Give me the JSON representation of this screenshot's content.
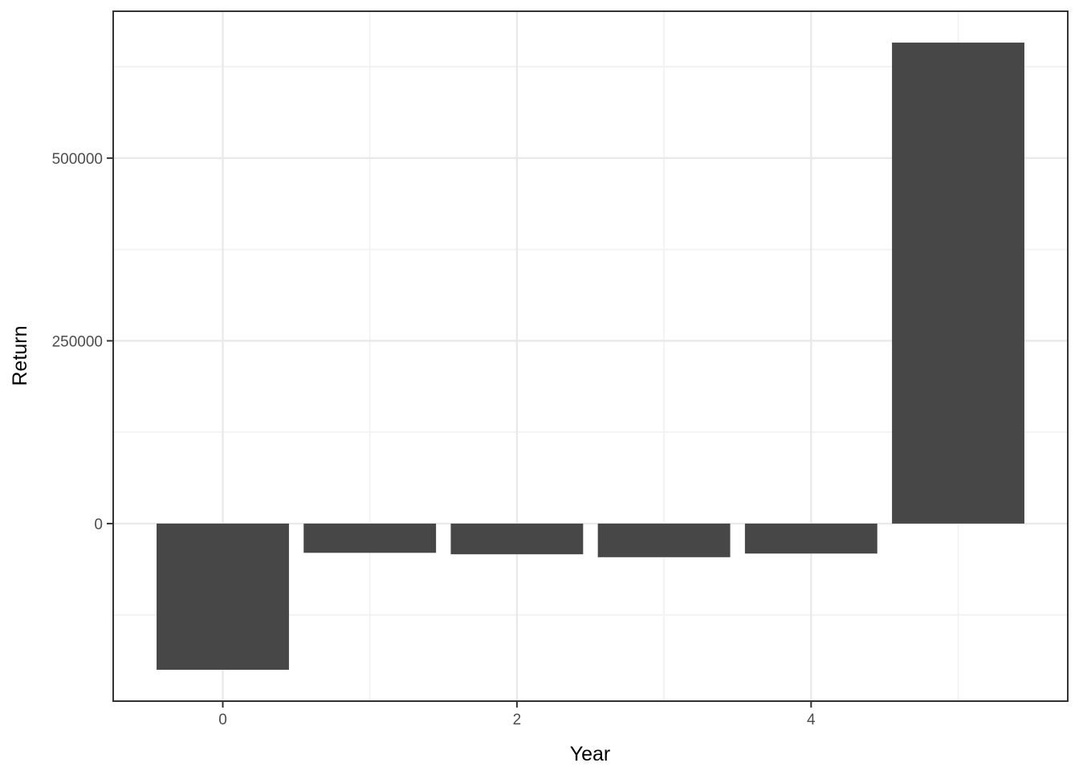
{
  "chart_data": {
    "type": "bar",
    "title": "",
    "xlabel": "Year",
    "ylabel": "Return",
    "x": [
      0,
      1,
      2,
      3,
      4,
      5
    ],
    "values": [
      -200000,
      -40000,
      -42000,
      -46000,
      -41000,
      658000
    ],
    "bar_width": 0.9,
    "xlim": [
      -0.745,
      5.745
    ],
    "ylim": [
      -242900,
      700900
    ],
    "x_ticks": [
      0,
      2,
      4
    ],
    "x_minor_ticks": [
      1,
      3,
      5
    ],
    "y_ticks": [
      0,
      250000,
      500000
    ],
    "y_minor_ticks": [
      -125000,
      125000,
      375000,
      625000
    ],
    "x_tick_labels": [
      "0",
      "2",
      "4"
    ],
    "y_tick_labels": [
      "0",
      "250000",
      "500000"
    ],
    "legend_position": "none",
    "grid": true,
    "colors": {
      "bar_fill": "#474747",
      "panel_background": "#FFFFFF",
      "panel_border": "#333333",
      "grid_major": "#E9E9E9",
      "grid_minor": "#F2F2F2",
      "tick_mark": "#333333",
      "tick_label": "#4D4D4D",
      "axis_title": "#000000"
    }
  }
}
